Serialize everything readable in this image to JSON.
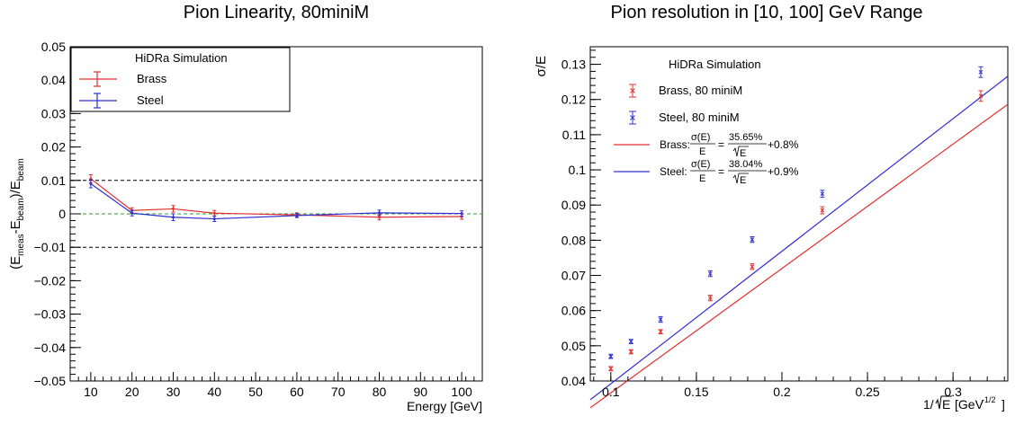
{
  "chart_data": [
    {
      "type": "line",
      "title": "Pion Linearity, 80miniM",
      "xlabel": "Energy [GeV]",
      "ylabel": {
        "base": "(E",
        "s1": "meas",
        "mid": "-E",
        "s2": "beam",
        "end": ")/E",
        "s3": "beam"
      },
      "xlim": [
        5,
        105
      ],
      "ylim": [
        -0.05,
        0.05
      ],
      "xticks": [
        10,
        20,
        30,
        40,
        50,
        60,
        70,
        80,
        90,
        100
      ],
      "xtick_labels": [
        "10",
        "20",
        "30",
        "40",
        "50",
        "60",
        "70",
        "80",
        "90",
        "100"
      ],
      "yticks": [
        -0.05,
        -0.04,
        -0.03,
        -0.02,
        -0.01,
        0,
        0.01,
        0.02,
        0.03,
        0.04,
        0.05
      ],
      "ytick_labels": [
        "−0.05",
        "−0.04",
        "−0.03",
        "−0.02",
        "−0.01",
        "0",
        "0.01",
        "0.02",
        "0.03",
        "0.04",
        "0.05"
      ],
      "ref_lines": [
        {
          "y": 0.01,
          "color": "#000000"
        },
        {
          "y": -0.01,
          "color": "#000000"
        },
        {
          "y": 0,
          "color": "#2e9e2e"
        }
      ],
      "legend": {
        "title": "HiDRa Simulation",
        "position": "top-left",
        "entries": [
          "Brass",
          "Steel"
        ]
      },
      "series": [
        {
          "name": "Brass",
          "color": "#e03030",
          "x": [
            10,
            20,
            30,
            40,
            60,
            80,
            100
          ],
          "y": [
            0.0105,
            0.001,
            0.0015,
            0.0002,
            -0.0003,
            -0.001,
            -0.0008
          ],
          "err": [
            0.0012,
            0.0008,
            0.001,
            0.0008,
            0.0006,
            0.0008,
            0.0008
          ]
        },
        {
          "name": "Steel",
          "color": "#3030d0",
          "x": [
            10,
            20,
            30,
            40,
            60,
            80,
            100
          ],
          "y": [
            0.009,
            0.0002,
            -0.001,
            -0.0015,
            -0.0005,
            0.0003,
            0.0001
          ],
          "err": [
            0.0012,
            0.0008,
            0.001,
            0.0008,
            0.0006,
            0.0008,
            0.0008
          ]
        }
      ]
    },
    {
      "type": "scatter",
      "title": "Pion resolution in [10, 100] GeV Range",
      "xlabel": {
        "prefix": "1/",
        "radicand": "E",
        "unit": "[GeV",
        "exp": "-1/2",
        "close": "]"
      },
      "ylabel": "σ/E",
      "xlim": [
        0.088,
        0.332
      ],
      "ylim": [
        0.04,
        0.135
      ],
      "xticks": [
        0.1,
        0.15,
        0.2,
        0.25,
        0.3
      ],
      "xtick_labels": [
        "0.1",
        "0.15",
        "0.2",
        "0.25",
        "0.3"
      ],
      "yticks": [
        0.04,
        0.05,
        0.06,
        0.07,
        0.08,
        0.09,
        0.1,
        0.11,
        0.12,
        0.13
      ],
      "ytick_labels": [
        "0.04",
        "0.05",
        "0.06",
        "0.07",
        "0.08",
        "0.09",
        "0.1",
        "0.11",
        "0.12",
        "0.13"
      ],
      "legend": {
        "title": "HiDRa Simulation",
        "position": "top-left",
        "entries": [
          "Brass, 80 miniM",
          "Steel, 80 miniM"
        ],
        "fits": [
          {
            "prefix": "Brass: ",
            "lhs_num": "σ(E)",
            "lhs_den": "E",
            "eq": "=",
            "stoch": "35.65%",
            "den": "E",
            "const": "+0.8%",
            "color": "#e03030"
          },
          {
            "prefix": "Steel: ",
            "lhs_num": "σ(E)",
            "lhs_den": "E",
            "eq": "=",
            "stoch": "38.04%",
            "den": "E",
            "const": "+0.9%",
            "color": "#3030d0"
          }
        ]
      },
      "series": [
        {
          "name": "Brass, 80 miniM",
          "color": "#e03030",
          "x": [
            0.1,
            0.1118,
            0.1291,
            0.1581,
            0.1826,
            0.2236,
            0.3162
          ],
          "y": [
            0.0435,
            0.0483,
            0.054,
            0.0636,
            0.0725,
            0.0885,
            0.121
          ],
          "err": [
            0.0006,
            0.0006,
            0.0006,
            0.0008,
            0.0008,
            0.001,
            0.0015
          ]
        },
        {
          "name": "Steel, 80 miniM",
          "color": "#3030d0",
          "x": [
            0.1,
            0.1118,
            0.1291,
            0.1581,
            0.1826,
            0.2236,
            0.3162
          ],
          "y": [
            0.047,
            0.0512,
            0.0575,
            0.0705,
            0.0802,
            0.0932,
            0.1278
          ],
          "err": [
            0.0006,
            0.0006,
            0.0008,
            0.0008,
            0.0008,
            0.001,
            0.0015
          ]
        }
      ],
      "fits": [
        {
          "name": "Brass",
          "color": "#e03030",
          "stochastic": 0.3565,
          "constant": 0.008
        },
        {
          "name": "Steel",
          "color": "#3030d0",
          "stochastic": 0.3804,
          "constant": 0.009
        }
      ]
    }
  ]
}
